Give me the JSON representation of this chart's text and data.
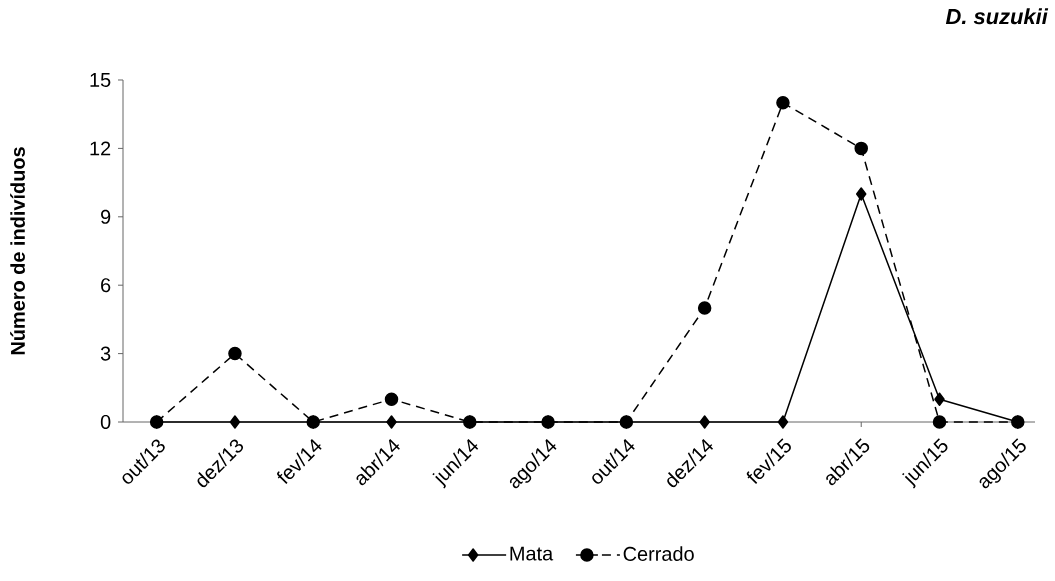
{
  "chart_data": {
    "type": "line",
    "title": "D. suzukii",
    "ylabel": "Número de indivíduos",
    "categories": [
      "out/13",
      "dez/13",
      "fev/14",
      "abr/14",
      "jun/14",
      "ago/14",
      "out/14",
      "dez/14",
      "fev/15",
      "abr/15",
      "jun/15",
      "ago/15"
    ],
    "series": [
      {
        "name": "Mata",
        "color": "#000000",
        "marker": "diamond",
        "line_style": "solid",
        "values": [
          0,
          0,
          0,
          0,
          0,
          0,
          0,
          0,
          0,
          10,
          1,
          0
        ]
      },
      {
        "name": "Cerrado",
        "color": "#000000",
        "marker": "circle",
        "line_style": "dashed",
        "values": [
          0,
          3,
          0,
          1,
          0,
          0,
          0,
          5,
          14,
          12,
          0,
          0
        ]
      }
    ],
    "ylim": [
      0,
      15
    ],
    "yticks": [
      0,
      3,
      6,
      9,
      12,
      15
    ],
    "grid": false,
    "legend": "bottom"
  }
}
